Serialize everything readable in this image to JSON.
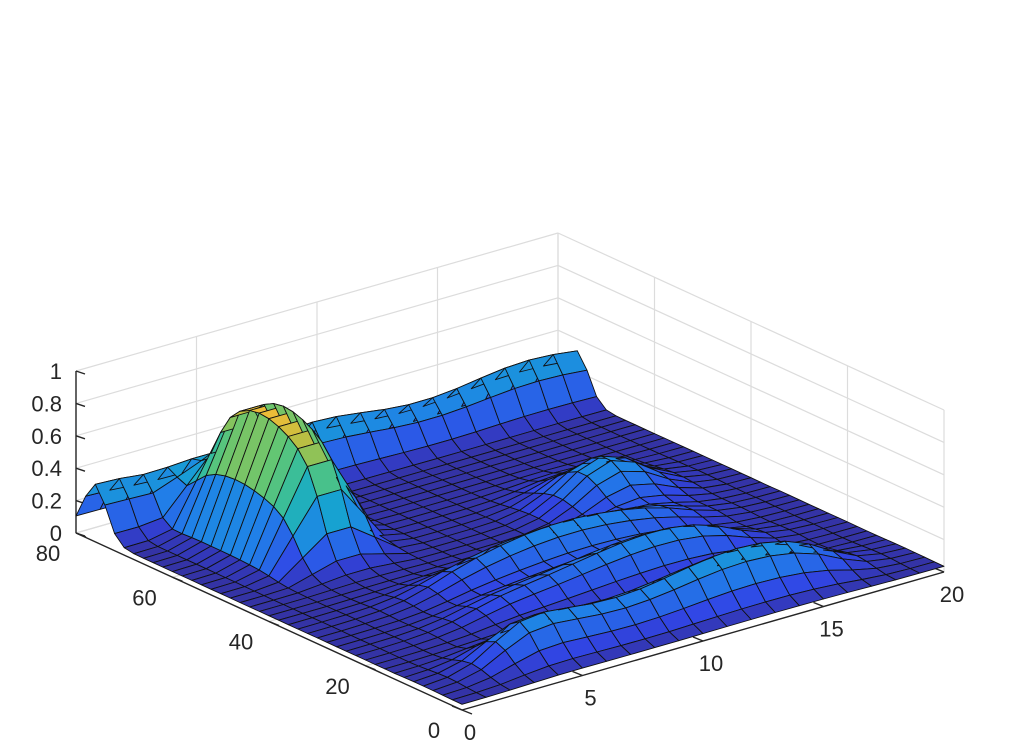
{
  "chart_data": {
    "type": "surface",
    "colormap": "parula",
    "grid": true,
    "x_axis": {
      "range": [
        0,
        20
      ],
      "ticks": [
        "0",
        "5",
        "10",
        "15",
        "20"
      ]
    },
    "y_axis": {
      "range": [
        0,
        80
      ],
      "ticks": [
        "0",
        "20",
        "40",
        "60",
        "80"
      ]
    },
    "z_axis": {
      "range": [
        0,
        1
      ],
      "ticks": [
        "0",
        "0.2",
        "0.4",
        "0.6",
        "0.8",
        "1"
      ]
    },
    "mesh": {
      "x_count": 21,
      "y_count": 41
    },
    "features": [
      {
        "label": "main peak",
        "x_center": 4.5,
        "y_center": 62,
        "peak_z": 0.93,
        "x_span": [
          3,
          6
        ],
        "y_span": [
          49,
          72
        ]
      },
      {
        "label": "back ridge",
        "x_range": [
          0,
          20
        ],
        "y_center": 76,
        "z": 0.32
      },
      {
        "label": "front ridge",
        "x_range": [
          3,
          17
        ],
        "y_center": 8,
        "z": 0.3
      },
      {
        "label": "middle ridges",
        "x_range": [
          5,
          16
        ],
        "y_centers": [
          22,
          32
        ],
        "z": 0.24
      },
      {
        "label": "back right bump",
        "x_center": 15,
        "y_center": 45,
        "z": 0.27
      }
    ]
  }
}
